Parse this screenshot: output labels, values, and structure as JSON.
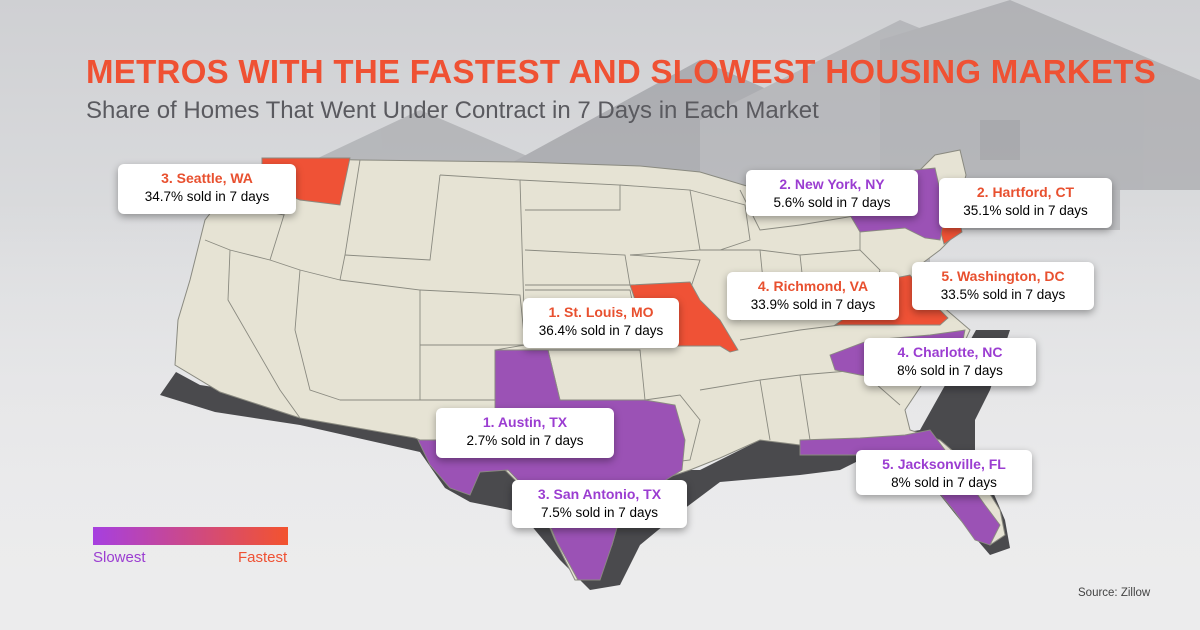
{
  "header": {
    "title": "METROS WITH THE FASTEST AND SLOWEST HOUSING MARKETS",
    "subtitle": "Share of Homes That Went Under Contract in 7 Days in Each Market"
  },
  "colors": {
    "fastest": "#ef5236",
    "slowest": "#9b52b5",
    "accent_text_fast": "#e8502f",
    "accent_text_slow": "#9b3dd1",
    "land": "#e6e3d4",
    "border": "#8a8a80",
    "shadow": "#4a4a4d",
    "title": "#ef5133",
    "subtitle": "#5a5a5f",
    "legend_text_slow": "#9b3dd1",
    "legend_text_fast": "#ef5133"
  },
  "map": {
    "type": "choropleth",
    "fastest_states": [
      "Washington",
      "Missouri",
      "Connecticut",
      "Virginia"
    ],
    "slowest_states": [
      "Texas",
      "New York",
      "North Carolina",
      "Florida"
    ]
  },
  "callouts": {
    "seattle": {
      "name": "3. Seattle, WA",
      "stat": "34.7% sold in 7 days",
      "group": "fastest",
      "rank": 3,
      "share_pct": 34.7
    },
    "new_york": {
      "name": "2. New York, NY",
      "stat": "5.6% sold in 7 days",
      "group": "slowest",
      "rank": 2,
      "share_pct": 5.6
    },
    "hartford": {
      "name": "2. Hartford, CT",
      "stat": "35.1% sold in 7 days",
      "group": "fastest",
      "rank": 2,
      "share_pct": 35.1
    },
    "richmond": {
      "name": "4. Richmond, VA",
      "stat": "33.9% sold in 7 days",
      "group": "fastest",
      "rank": 4,
      "share_pct": 33.9
    },
    "washington_dc": {
      "name": "5. Washington, DC",
      "stat": "33.5% sold in 7 days",
      "group": "fastest",
      "rank": 5,
      "share_pct": 33.5
    },
    "st_louis": {
      "name": "1. St. Louis, MO",
      "stat": "36.4% sold in 7 days",
      "group": "fastest",
      "rank": 1,
      "share_pct": 36.4
    },
    "charlotte": {
      "name": "4. Charlotte, NC",
      "stat": "8% sold in 7 days",
      "group": "slowest",
      "rank": 4,
      "share_pct": 8
    },
    "austin": {
      "name": "1. Austin, TX",
      "stat": "2.7% sold in 7 days",
      "group": "slowest",
      "rank": 1,
      "share_pct": 2.7
    },
    "jacksonville": {
      "name": "5. Jacksonville, FL",
      "stat": "8% sold in 7 days",
      "group": "slowest",
      "rank": 5,
      "share_pct": 8
    },
    "san_antonio": {
      "name": "3. San Antonio, TX",
      "stat": "7.5% sold in 7 days",
      "group": "slowest",
      "rank": 3,
      "share_pct": 7.5
    }
  },
  "legend": {
    "low_label": "Slowest",
    "high_label": "Fastest",
    "gradient_from": "#a63fe0",
    "gradient_to": "#f3532e"
  },
  "source": "Source: Zillow"
}
